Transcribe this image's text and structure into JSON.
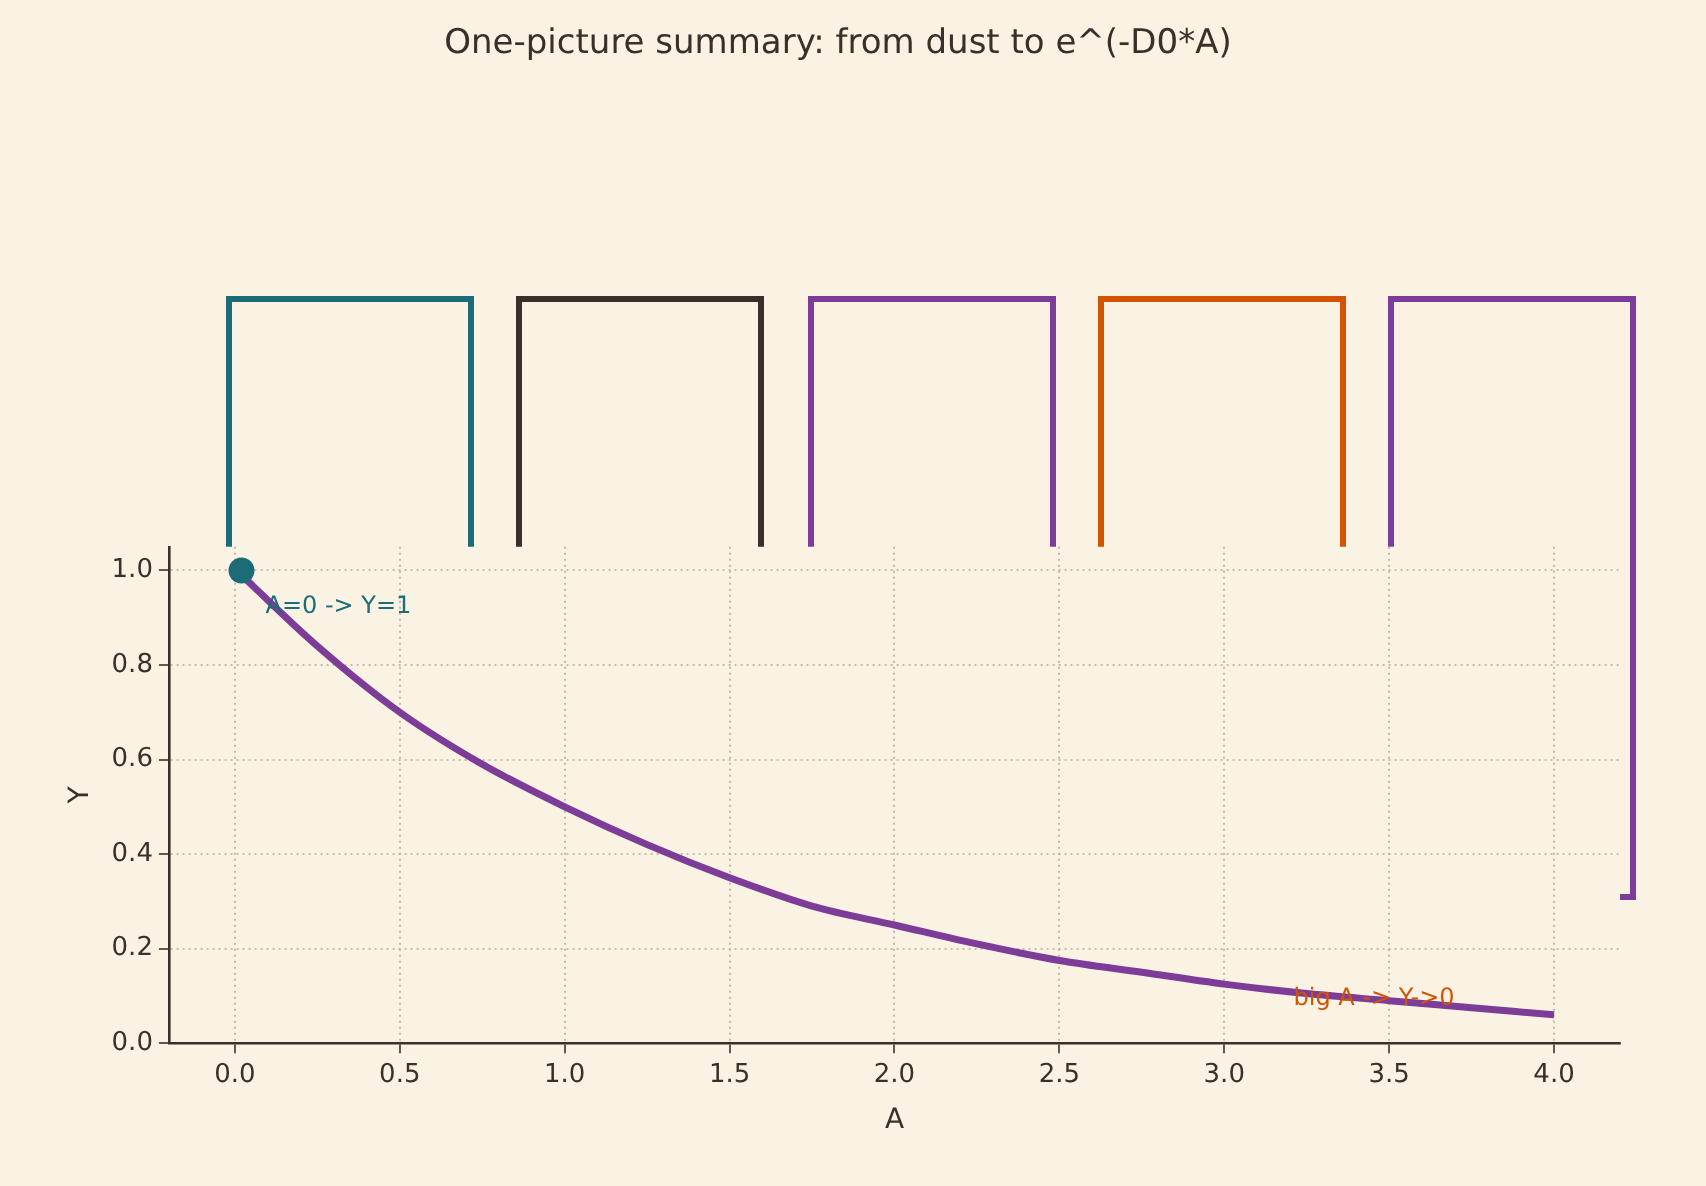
{
  "chart_data": {
    "type": "line",
    "title": "One-picture summary: from dust to e^(-D0*A)",
    "xlabel": "A",
    "ylabel": "Y",
    "xlim": [
      -0.2,
      4.2
    ],
    "xticks": [
      {
        "value": 0,
        "label": "0.0"
      },
      {
        "value": 0.5,
        "label": "0.5"
      },
      {
        "value": 1,
        "label": "1.0"
      },
      {
        "value": 1.5,
        "label": "1.5"
      },
      {
        "value": 2,
        "label": "2.0"
      },
      {
        "value": 2.5,
        "label": "2.5"
      },
      {
        "value": 3,
        "label": "3.0"
      },
      {
        "value": 3.5,
        "label": "3.5"
      },
      {
        "value": 4,
        "label": "4.0"
      }
    ],
    "ylim": [
      0,
      1.05
    ],
    "yticks": [
      {
        "value": 0,
        "label": "0.0"
      },
      {
        "value": 0.2,
        "label": "0.2"
      },
      {
        "value": 0.4,
        "label": "0.4"
      },
      {
        "value": 0.6,
        "label": "0.6"
      },
      {
        "value": 0.8,
        "label": "0.8"
      },
      {
        "value": 1,
        "label": "1.0"
      }
    ],
    "grid": true,
    "series": [
      {
        "type": "line",
        "color": "#7d3c98",
        "marker": "none",
        "x": [
          0.02,
          0.25,
          0.5,
          0.75,
          1.0,
          1.25,
          1.5,
          1.75,
          2.0,
          2.25,
          2.5,
          2.75,
          3.0,
          3.25,
          3.5,
          3.75,
          4.0
        ],
        "values": [
          0.99,
          0.84,
          0.7,
          0.59,
          0.5,
          0.42,
          0.35,
          0.29,
          0.25,
          0.21,
          0.175,
          0.15,
          0.125,
          0.105,
          0.09,
          0.075,
          0.06
        ]
      },
      {
        "type": "scatter",
        "color": "#1b6b78",
        "marker": "circle",
        "x": [
          0.02
        ],
        "values": [
          1.0
        ]
      }
    ],
    "annotations": [
      {
        "text": "A=0 -> Y=1",
        "x": 0.02,
        "y": 1.0
      },
      "big A -> Y->0"
    ]
  }
}
